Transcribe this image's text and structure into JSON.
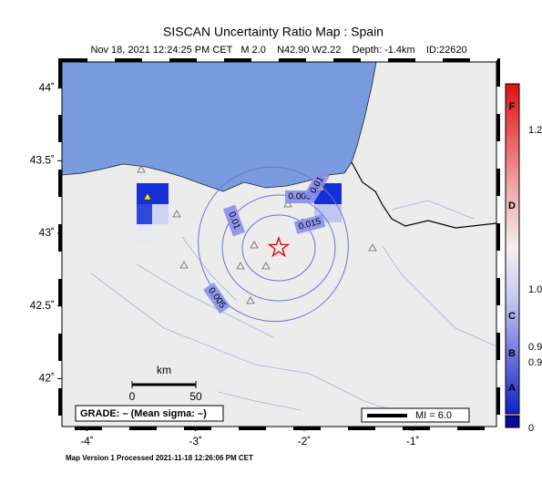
{
  "map": {
    "title": "SISCAN Uncertainty Ratio Map : Spain",
    "subtitle": "Nov 18, 2021 12:24:25 PM CET   M 2.0    N42.90 W2.22    Depth: -1.4km    ID:22620",
    "xlim": [
      -4.23,
      -0.23
    ],
    "ylim": [
      41.67,
      44.18
    ],
    "lon_ticks": [
      {
        "value": -4,
        "label": "-4˚"
      },
      {
        "value": -3,
        "label": "-3˚"
      },
      {
        "value": -2,
        "label": "-2˚"
      },
      {
        "value": -1,
        "label": "-1˚"
      }
    ],
    "lat_ticks": [
      {
        "value": 44,
        "label": "44˚"
      },
      {
        "value": 43.5,
        "label": "43.5˚"
      },
      {
        "value": 43,
        "label": "43˚"
      },
      {
        "value": 42.5,
        "label": "42.5˚"
      },
      {
        "value": 42,
        "label": "42˚"
      }
    ],
    "contour_labels": [
      "0.01",
      "0.005",
      "0.015",
      "0.01",
      "0.005"
    ],
    "colorbar_labels": [
      "F",
      "1.2",
      "D",
      "1.0",
      "C",
      "0.9",
      "B",
      "0.9",
      "A",
      "0"
    ],
    "scale_bar": {
      "unit": "km",
      "start": "0",
      "end": "50"
    },
    "grade": "GRADE: – (Mean sigma: –)",
    "mi": "MI = 6.0",
    "footer": "Map Version 1 Processed 2021-11-18 12:26:06 PM CET"
  }
}
